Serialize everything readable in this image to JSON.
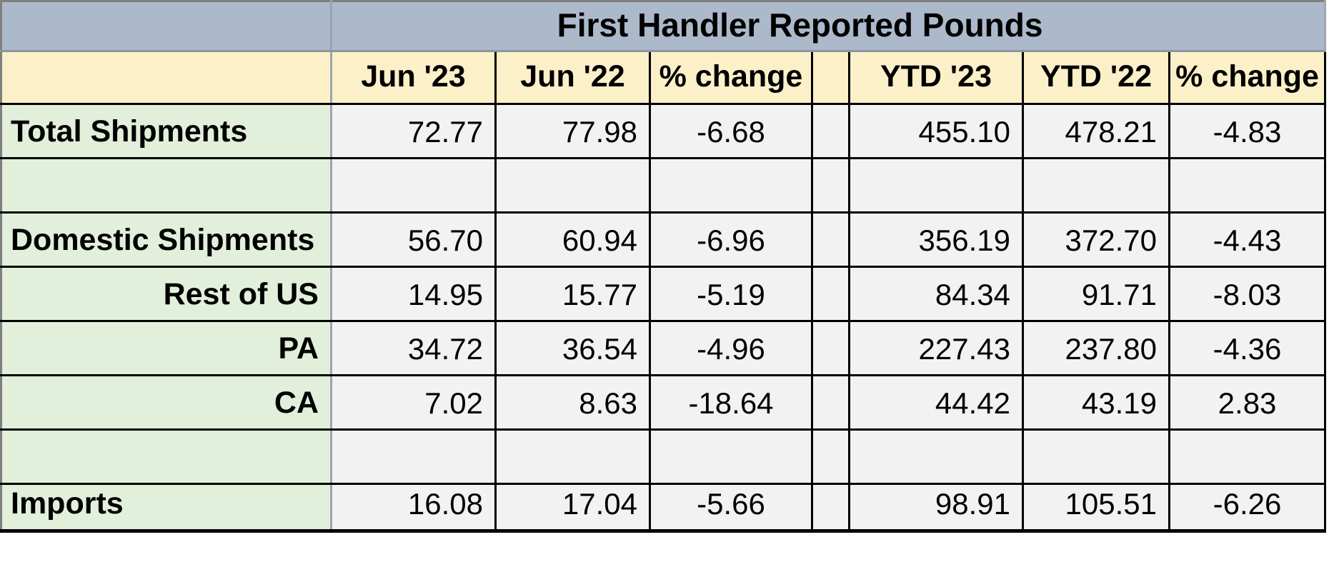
{
  "title": "First Handler Reported Pounds",
  "header": {
    "row_label": "",
    "columns": [
      "Jun '23",
      "Jun '22",
      "% change",
      "",
      "YTD '23",
      "YTD '22",
      "% change"
    ]
  },
  "rows": [
    {
      "label": "Total Shipments",
      "label_align": "left",
      "values": [
        "72.77",
        "77.98",
        "-6.68",
        "455.10",
        "478.21",
        "-4.83"
      ]
    },
    {
      "label": "",
      "label_align": "left",
      "values": [
        "",
        "",
        "",
        "",
        "",
        ""
      ]
    },
    {
      "label": "Domestic Shipments",
      "label_align": "left",
      "values": [
        "56.70",
        "60.94",
        "-6.96",
        "356.19",
        "372.70",
        "-4.43"
      ]
    },
    {
      "label": "Rest of US",
      "label_align": "right",
      "values": [
        "14.95",
        "15.77",
        "-5.19",
        "84.34",
        "91.71",
        "-8.03"
      ]
    },
    {
      "label": "PA",
      "label_align": "right",
      "values": [
        "34.72",
        "36.54",
        "-4.96",
        "227.43",
        "237.80",
        "-4.36"
      ]
    },
    {
      "label": "CA",
      "label_align": "right",
      "values": [
        "7.02",
        "8.63",
        "-18.64",
        "44.42",
        "43.19",
        "2.83"
      ]
    },
    {
      "label": "",
      "label_align": "left",
      "values": [
        "",
        "",
        "",
        "",
        "",
        ""
      ]
    },
    {
      "label": "Imports",
      "label_align": "left",
      "values": [
        "16.08",
        "17.04",
        "-5.66",
        "98.91",
        "105.51",
        "-6.26"
      ]
    }
  ],
  "colors": {
    "banner_bg": "#acb9ca",
    "header_bg": "#fbf0c8",
    "label_bg": "#e2efda",
    "cell_bg": "#f2f2f3",
    "grid_line": "#000000",
    "outer_line": "#7f7f7f"
  }
}
